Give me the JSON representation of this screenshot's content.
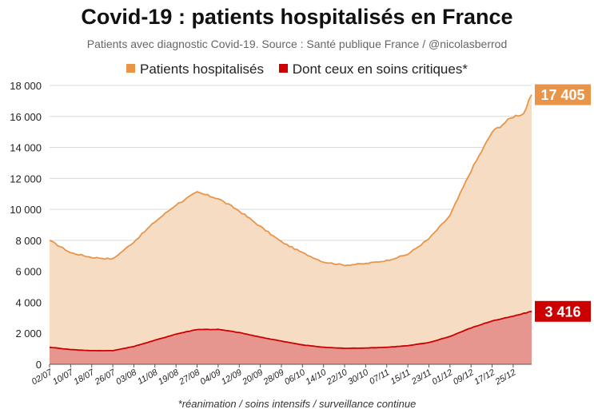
{
  "chart_data": {
    "type": "area",
    "title": "Covid-19 : patients hospitalisés en France",
    "subtitle": "Patients avec diagnostic Covid-19. Source : Santé publique France / @nicolasberrod",
    "footnote": "*réanimation / soins intensifs / surveillance continue",
    "xlabel": "",
    "ylabel": "",
    "ylim": [
      0,
      18000
    ],
    "yticks": [
      0,
      2000,
      4000,
      6000,
      8000,
      10000,
      12000,
      14000,
      16000,
      18000
    ],
    "ytick_labels": [
      "0",
      "2 000",
      "4 000",
      "6 000",
      "8 000",
      "10 000",
      "12 000",
      "14 000",
      "16 000",
      "18 000"
    ],
    "xtick_labels": [
      "02/07",
      "10/07",
      "18/07",
      "26/07",
      "03/08",
      "11/08",
      "19/08",
      "27/08",
      "04/09",
      "12/09",
      "20/09",
      "28/09",
      "06/10",
      "14/10",
      "22/10",
      "30/10",
      "07/11",
      "15/11",
      "23/11",
      "01/12",
      "09/12",
      "17/12",
      "25/12"
    ],
    "days_per_tick": 8,
    "n_days": 183,
    "grid": true,
    "legend_position": "top-center",
    "series": [
      {
        "name": "Patients hospitalisés",
        "color": "#e8954a",
        "fill": "#f6dcc2",
        "end_label": "17 405",
        "label_color": "#e8954a",
        "day": [
          0,
          8,
          16,
          24,
          32,
          40,
          48,
          56,
          64,
          72,
          80,
          88,
          96,
          104,
          112,
          120,
          128,
          136,
          144,
          152,
          160,
          168,
          176,
          178,
          180,
          181,
          182,
          183
        ],
        "values": [
          8000,
          7200,
          6900,
          6800,
          7900,
          9200,
          10300,
          11100,
          10700,
          9900,
          8900,
          7900,
          7200,
          6600,
          6400,
          6500,
          6700,
          7100,
          8100,
          9600,
          12500,
          15000,
          16000,
          16100,
          16200,
          16600,
          17000,
          17405
        ]
      },
      {
        "name": "Dont ceux en soins critiques*",
        "color": "#cc0000",
        "fill": "#e6968e",
        "end_label": "3 416",
        "label_color": "#cc0000",
        "day": [
          0,
          8,
          16,
          24,
          32,
          40,
          48,
          56,
          64,
          72,
          80,
          88,
          96,
          104,
          112,
          120,
          128,
          136,
          144,
          152,
          160,
          168,
          176,
          183
        ],
        "values": [
          1100,
          950,
          880,
          880,
          1150,
          1550,
          1950,
          2250,
          2250,
          2050,
          1750,
          1500,
          1250,
          1100,
          1030,
          1050,
          1100,
          1200,
          1400,
          1800,
          2350,
          2800,
          3100,
          3416
        ]
      }
    ]
  }
}
